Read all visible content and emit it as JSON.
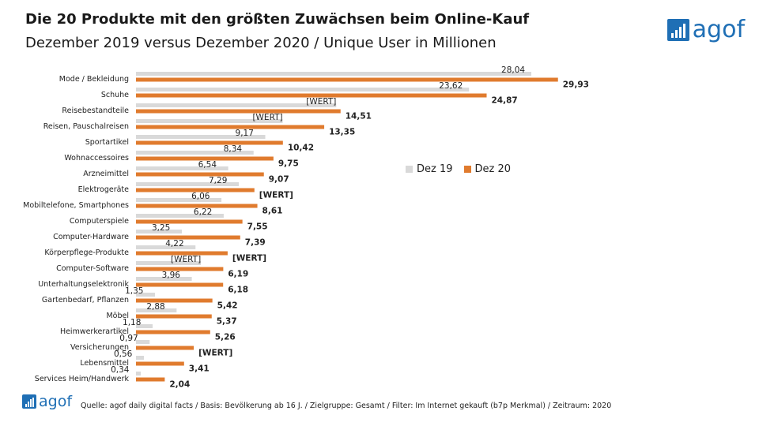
{
  "header": {
    "title": "Die 20 Produkte mit den größten Zuwächsen beim Online-Kauf",
    "subtitle": "Dezember 2019 versus Dezember 2020 / Unique User in Millionen"
  },
  "logo": {
    "text": "agof"
  },
  "footer": {
    "source": "Quelle: agof daily digital facts / Basis: Bevölkerung ab 16 J. / Zielgruppe: Gesamt / Filter: Im Internet gekauft (b7p Merkmal) / Zeitraum: 2020"
  },
  "colors": {
    "dez19": "#d9d9d9",
    "dez20": "#e07b2e"
  },
  "chart_data": {
    "type": "bar",
    "orientation": "horizontal",
    "categories": [
      "Mode / Bekleidung",
      "Schuhe",
      "Reisebestandteile",
      "Reisen, Pauschalreisen",
      "Sportartikel",
      "Wohnaccessoires",
      "Arzneimittel",
      "Elektrogeräte",
      "Mobiltelefone, Smartphones",
      "Computerspiele",
      "Computer-Hardware",
      "Körperpflege-Produkte",
      "Computer-Software",
      "Unterhaltungselektronik",
      "Gartenbedarf, Pflanzen",
      "Möbel",
      "Heimwerkerartikel",
      "Versicherungen",
      "Lebensmittel",
      "Services Heim/Handwerk"
    ],
    "series": [
      {
        "name": "Dez 19",
        "values": [
          28.04,
          23.62,
          14.2,
          10.4,
          9.17,
          8.34,
          6.54,
          7.29,
          6.06,
          6.22,
          3.25,
          4.22,
          4.6,
          3.96,
          1.35,
          2.88,
          1.18,
          0.97,
          0.56,
          0.34
        ],
        "labels": [
          "28,04",
          "23,62",
          "[WERT]",
          "[WERT]",
          "9,17",
          "8,34",
          "6,54",
          "7,29",
          "6,06",
          "6,22",
          "3,25",
          "4,22",
          "[WERT]",
          "3,96",
          "1,35",
          "2,88",
          "1,18",
          "0,97",
          "0,56",
          "0,34"
        ]
      },
      {
        "name": "Dez 20",
        "values": [
          29.93,
          24.87,
          14.51,
          13.35,
          10.42,
          9.75,
          9.07,
          8.4,
          8.61,
          7.55,
          7.39,
          6.5,
          6.19,
          6.18,
          5.42,
          5.37,
          5.26,
          4.1,
          3.41,
          2.04
        ],
        "labels": [
          "29,93",
          "24,87",
          "14,51",
          "13,35",
          "10,42",
          "9,75",
          "9,07",
          "[WERT]",
          "8,61",
          "7,55",
          "7,39",
          "[WERT]",
          "6,19",
          "6,18",
          "5,42",
          "5,37",
          "5,26",
          "[WERT]",
          "3,41",
          "2,04"
        ]
      }
    ],
    "xlim": [
      0,
      30
    ],
    "grid": false,
    "legend_position": "right"
  }
}
